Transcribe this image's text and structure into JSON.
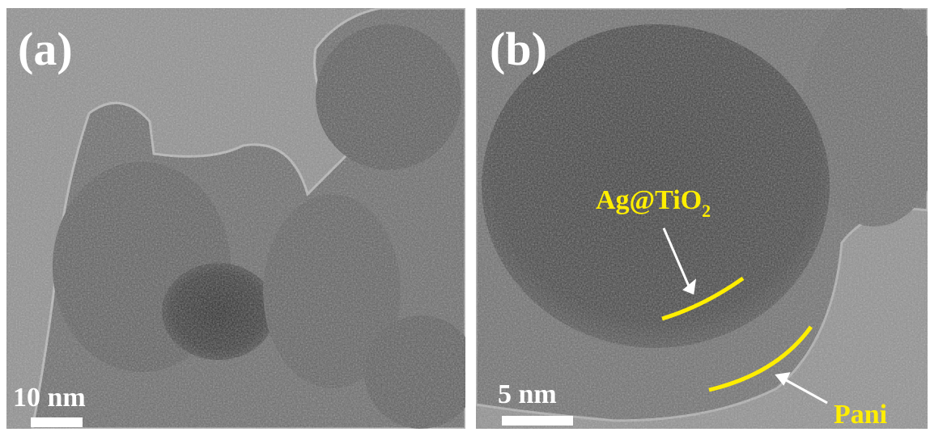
{
  "panels": [
    {
      "label": "(a)",
      "scale_bar": "10 nm"
    },
    {
      "label": "(b)",
      "scale_bar": "5 nm",
      "annotations": [
        {
          "text": "Ag@TiO",
          "subscript": "2"
        },
        {
          "text": "Pani"
        }
      ]
    }
  ]
}
